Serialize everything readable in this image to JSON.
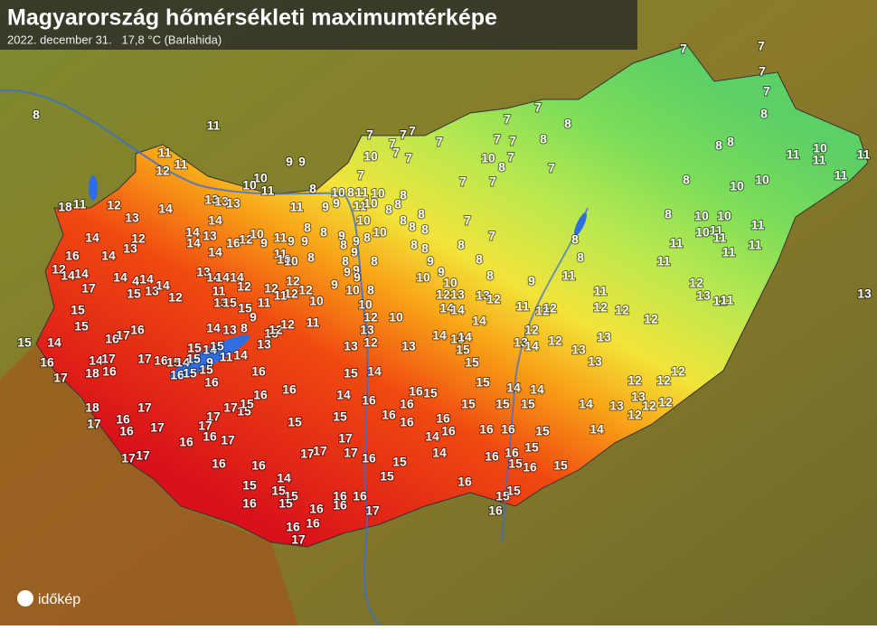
{
  "header": {
    "title": "Magyarország hőmérsékleti maximumtérképe",
    "subtitle": "2022. december 31.   17,8 °C (Barlahida)"
  },
  "logo": "időkép",
  "labels": [
    7,
    7,
    7,
    7,
    8,
    8,
    11,
    7,
    7,
    8,
    7,
    7,
    7,
    7,
    7,
    7,
    7,
    8,
    8,
    8,
    11,
    10,
    11,
    11,
    11,
    9,
    9,
    10,
    7,
    7,
    10,
    7,
    8,
    7,
    11,
    12,
    11,
    10,
    10,
    11,
    8,
    7,
    7,
    7,
    8,
    10,
    10,
    18,
    11,
    12,
    13,
    14,
    13,
    13,
    13,
    14,
    11,
    9,
    9,
    10,
    8,
    11,
    10,
    8,
    11,
    10,
    8,
    8,
    8,
    10,
    10,
    8,
    8,
    8,
    7,
    7,
    8,
    10,
    10,
    10,
    11,
    11,
    14,
    12,
    13,
    14,
    13,
    14,
    16,
    12,
    10,
    9,
    11,
    9,
    9,
    8,
    8,
    9,
    9,
    8,
    9,
    8,
    8,
    8,
    8,
    8,
    11,
    11,
    11,
    16,
    14,
    14,
    11,
    10,
    10,
    8,
    8,
    8,
    9,
    8,
    8,
    11,
    11,
    12,
    14,
    14,
    14,
    4,
    14,
    13,
    14,
    14,
    14,
    17,
    15,
    13,
    14,
    12,
    11,
    12,
    12,
    12,
    12,
    12,
    10,
    9,
    9,
    9,
    9,
    8,
    10,
    10,
    9,
    10,
    8,
    9,
    11,
    12,
    13,
    13,
    12,
    11,
    12,
    13,
    11,
    11,
    13,
    15,
    13,
    15,
    15,
    9,
    11,
    11,
    10,
    12,
    10,
    14,
    14,
    14,
    11,
    12,
    12,
    12,
    12,
    12,
    15,
    14,
    13,
    8,
    15,
    12,
    12,
    11,
    13,
    12,
    14,
    13,
    14,
    12,
    13,
    14,
    12,
    13,
    13,
    15,
    14,
    16,
    17,
    16,
    15,
    14,
    15,
    13,
    13,
    13,
    15,
    13,
    16,
    14,
    17,
    17,
    16,
    15,
    14,
    15,
    9,
    11,
    14,
    15,
    17,
    18,
    16,
    16,
    15,
    15,
    16,
    16,
    15,
    14,
    12,
    12,
    12,
    16,
    16,
    14,
    16,
    15,
    15,
    14,
    14,
    18,
    17,
    17,
    15,
    15,
    16,
    16,
    16,
    15,
    15,
    15,
    14,
    13,
    13,
    12,
    12,
    12,
    17,
    16,
    17,
    17,
    17,
    15,
    15,
    16,
    16,
    16,
    16,
    16,
    17,
    17,
    14,
    16,
    16,
    16,
    15,
    14,
    17,
    17,
    16,
    16,
    17,
    17,
    17,
    16,
    15,
    14,
    16,
    16,
    15,
    15,
    16,
    15,
    14,
    15,
    16,
    15,
    15,
    15,
    15,
    15,
    16,
    15,
    16,
    16,
    16,
    16,
    17,
    16,
    16,
    16,
    17
  ]
}
